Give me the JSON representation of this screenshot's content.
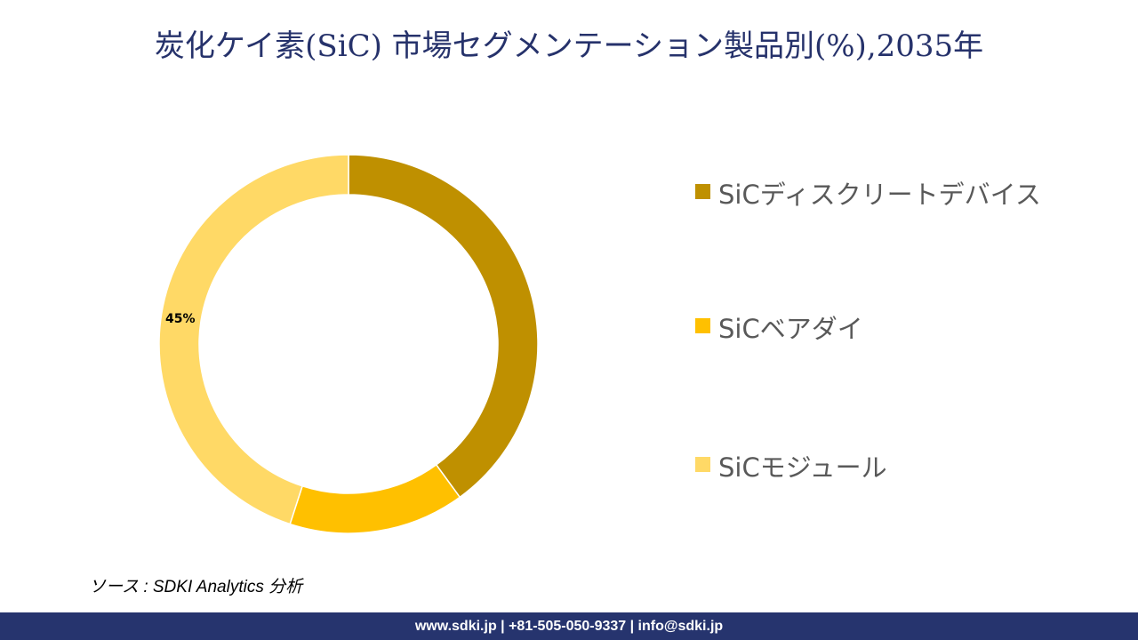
{
  "title": "炭化ケイ素(SiC) 市場セグメンテーション製品別(%),2035年",
  "chart_data": {
    "type": "pie",
    "subtype": "donut",
    "title": "炭化ケイ素(SiC) 市場セグメンテーション製品別(%),2035年",
    "categories": [
      "SiCディスクリートデバイス",
      "SiCベアダイ",
      "SiCモジュール"
    ],
    "values": [
      40,
      15,
      45
    ],
    "colors": [
      "#bf9000",
      "#ffc000",
      "#ffd966"
    ],
    "data_labels": [
      null,
      null,
      "45%"
    ],
    "start_angle_deg": 0,
    "direction": "clockwise",
    "legend_position": "right"
  },
  "legend": {
    "items": [
      {
        "label": "SiCディスクリートデバイス",
        "color": "#bf9000"
      },
      {
        "label": "SiCベアダイ",
        "color": "#ffc000"
      },
      {
        "label": "SiCモジュール",
        "color": "#ffd966"
      }
    ]
  },
  "source": "ソース : SDKI Analytics 分析",
  "footer": "www.sdki.jp | +81-505-050-9337 | info@sdki.jp"
}
